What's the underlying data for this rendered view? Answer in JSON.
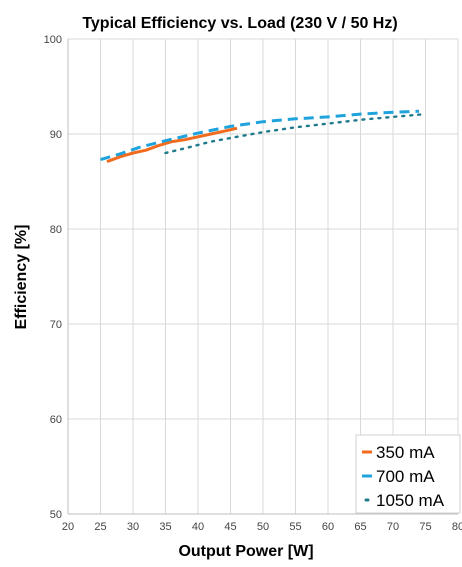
{
  "chart_data": {
    "type": "line",
    "title": "Typical Efficiency vs. Load (230 V / 50 Hz)",
    "xlabel": "Output Power [W]",
    "ylabel": "Efficiency [%]",
    "xlim": [
      20,
      80
    ],
    "ylim": [
      50,
      100
    ],
    "x_ticks": [
      20,
      25,
      30,
      35,
      40,
      45,
      50,
      55,
      60,
      65,
      70,
      75,
      80
    ],
    "y_ticks": [
      50,
      60,
      70,
      80,
      90,
      100
    ],
    "grid": true,
    "legend_position": "bottom-right",
    "series": [
      {
        "name": "350 mA",
        "color": "#f26b1d",
        "style": "solid",
        "x": [
          26,
          28,
          30,
          32,
          34,
          36,
          38,
          40,
          42,
          44,
          46
        ],
        "y": [
          87.1,
          87.6,
          88.0,
          88.3,
          88.8,
          89.2,
          89.4,
          89.7,
          90.0,
          90.3,
          90.6
        ]
      },
      {
        "name": "700 mA",
        "color": "#1fa3dc",
        "style": "dashed",
        "x": [
          25,
          28,
          31,
          35,
          40,
          45,
          50,
          55,
          60,
          65,
          70,
          74
        ],
        "y": [
          87.3,
          87.9,
          88.6,
          89.3,
          90.1,
          90.8,
          91.3,
          91.6,
          91.8,
          92.1,
          92.3,
          92.4
        ]
      },
      {
        "name": "1050 mA",
        "color": "#1f7a8c",
        "style": "dotted",
        "x": [
          35,
          38,
          42,
          46,
          50,
          55,
          60,
          65,
          70,
          75
        ],
        "y": [
          88.0,
          88.5,
          89.2,
          89.7,
          90.2,
          90.7,
          91.1,
          91.5,
          91.8,
          92.1
        ]
      }
    ]
  }
}
